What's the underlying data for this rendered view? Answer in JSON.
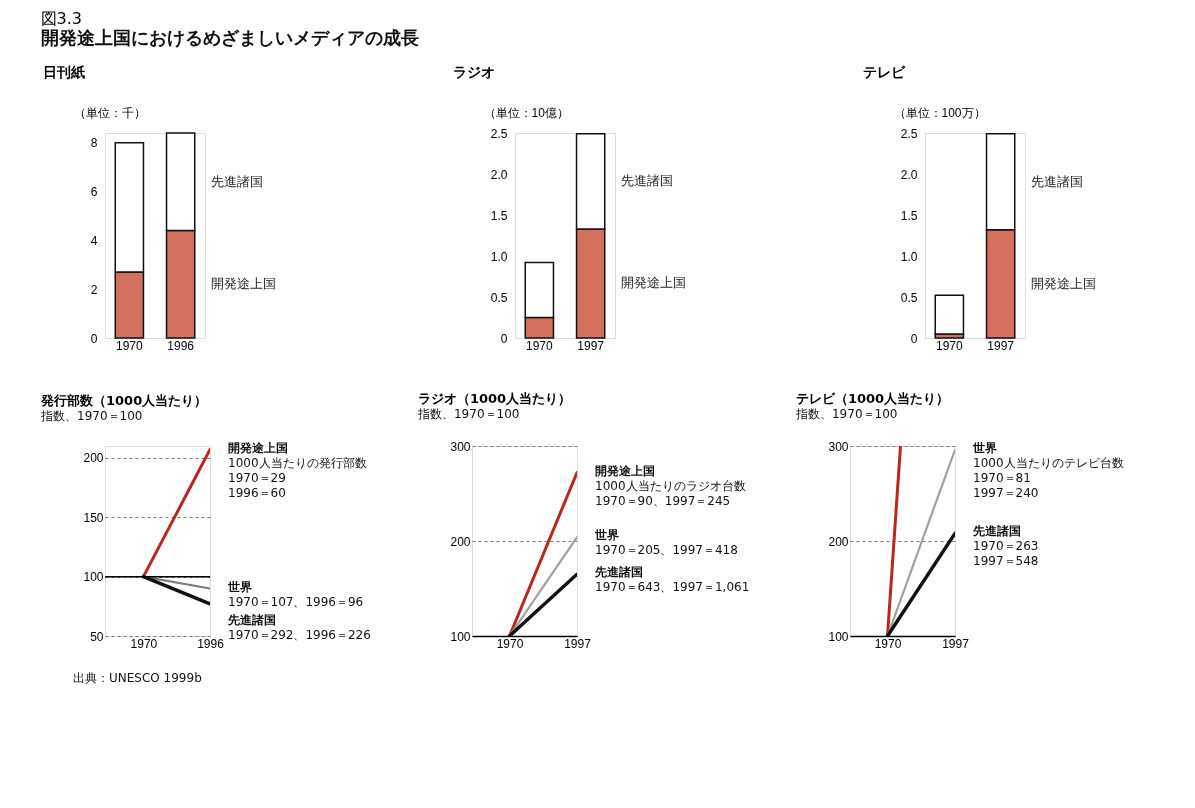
{
  "chart_data": [
    {
      "type": "bar",
      "title": "日刊紙",
      "ylabel": "（単位：千）",
      "annotations": [
        "図3.3",
        "開発途上国におけるめざましいメディアの成長"
      ],
      "categories": [
        "1970",
        "1996"
      ],
      "stacked": true,
      "series": [
        {
          "name": "開発途上国",
          "color": "#d4705e",
          "values": [
            2.7,
            4.4
          ]
        },
        {
          "name": "先進諸国",
          "color": "#ffffff",
          "values": [
            5.3,
            4.0
          ]
        }
      ],
      "ylim": [
        0,
        8.4
      ],
      "yticks": [
        0,
        2,
        4,
        6,
        8
      ]
    },
    {
      "type": "bar",
      "title": "ラジオ",
      "ylabel": "（単位：10億）",
      "categories": [
        "1970",
        "1997"
      ],
      "stacked": true,
      "series": [
        {
          "name": "開発途上国",
          "color": "#d4705e",
          "values": [
            0.25,
            1.33
          ]
        },
        {
          "name": "先進諸国",
          "color": "#ffffff",
          "values": [
            0.67,
            1.16
          ]
        }
      ],
      "ylim": [
        0,
        2.5
      ],
      "yticks": [
        {
          "value": 0,
          "label": "0"
        },
        {
          "value": 0.5,
          "label": "0.5"
        },
        {
          "value": 1,
          "label": "1.0"
        },
        {
          "value": 1.5,
          "label": "1.5"
        },
        {
          "value": 2,
          "label": "2.0"
        },
        {
          "value": 2.5,
          "label": "2.5"
        }
      ]
    },
    {
      "type": "bar",
      "title": "テレビ",
      "ylabel": "（単位：100万）",
      "categories": [
        "1970",
        "1997"
      ],
      "stacked": true,
      "series": [
        {
          "name": "開発途上国",
          "color": "#d4705e",
          "values": [
            0.05,
            1.32
          ]
        },
        {
          "name": "先進諸国",
          "color": "#ffffff",
          "values": [
            0.47,
            1.17
          ]
        }
      ],
      "ylim": [
        0,
        2.5
      ],
      "yticks": [
        {
          "value": 0,
          "label": "0"
        },
        {
          "value": 0.5,
          "label": "0.5"
        },
        {
          "value": 1,
          "label": "1.0"
        },
        {
          "value": 1.5,
          "label": "1.5"
        },
        {
          "value": 2,
          "label": "2.0"
        },
        {
          "value": 2.5,
          "label": "2.5"
        }
      ]
    },
    {
      "type": "line",
      "title": "発行部数（1000人当たり）",
      "subtitle": "指数、1970＝100",
      "x": [
        1970,
        1996
      ],
      "xlim": [
        1955,
        1996
      ],
      "xticks": [
        1970,
        1996
      ],
      "ylim": [
        50,
        210
      ],
      "yticks": [
        50,
        100,
        150,
        200
      ],
      "grid": "y",
      "marker": "none",
      "line_style": "solid",
      "ref_lines": [
        {
          "axis": "y",
          "value": 100,
          "color": "#000000"
        }
      ],
      "series": [
        {
          "name": "開発途上国",
          "color": "#b8281c",
          "values": [
            100,
            207
          ]
        },
        {
          "name": "世界",
          "color": "#7a7a7a",
          "values": [
            100,
            90
          ]
        },
        {
          "name": "先進諸国",
          "color": "#111111",
          "values": [
            100,
            77
          ]
        }
      ],
      "annotations": [
        "1000人当たりの発行部数\n1970＝29\n1996＝60",
        "1970＝107、1996＝96",
        "1970＝292、1996＝226",
        "出典：UNESCO 1999b"
      ]
    },
    {
      "type": "line",
      "title": "ラジオ（1000人当たり）",
      "subtitle": "指数、1970＝100",
      "x": [
        1970,
        1997
      ],
      "xlim": [
        1955,
        1997
      ],
      "xticks": [
        1970,
        1997
      ],
      "ylim": [
        100,
        300
      ],
      "yticks": [
        100,
        200,
        300
      ],
      "grid": "y",
      "marker": "none",
      "line_style": "solid",
      "series": [
        {
          "name": "開発途上国",
          "color": "#b8281c",
          "values": [
            100,
            272
          ]
        },
        {
          "name": "世界",
          "color": "#a0a0a0",
          "values": [
            100,
            204
          ]
        },
        {
          "name": "先進諸国",
          "color": "#111111",
          "values": [
            100,
            165
          ]
        }
      ],
      "annotations": [
        "1000人当たりのラジオ台数\n1970＝90、1997＝245",
        "1970＝205、1997＝418",
        "1970＝643、1997＝1,061"
      ]
    },
    {
      "type": "line",
      "title": "テレビ（1000人当たり）",
      "subtitle": "指数、1970＝100",
      "x": [
        1970,
        1997
      ],
      "xlim": [
        1955,
        1997
      ],
      "xticks": [
        1970,
        1997
      ],
      "ylim": [
        100,
        300
      ],
      "yticks": [
        100,
        200,
        300
      ],
      "grid": "y",
      "marker": "none",
      "line_style": "solid",
      "series": [
        {
          "color": "#b8281c",
          "x": [
            1970,
            1975.2
          ],
          "values": [
            100,
            300
          ]
        },
        {
          "name": "世界",
          "color": "#a0a0a0",
          "values": [
            100,
            296
          ]
        },
        {
          "name": "先進諸国",
          "color": "#111111",
          "values": [
            100,
            208
          ]
        }
      ],
      "annotations": [
        "1000人当たりのテレビ台数\n1970＝81\n1997＝240",
        "1970＝263\n1997＝548"
      ]
    }
  ]
}
